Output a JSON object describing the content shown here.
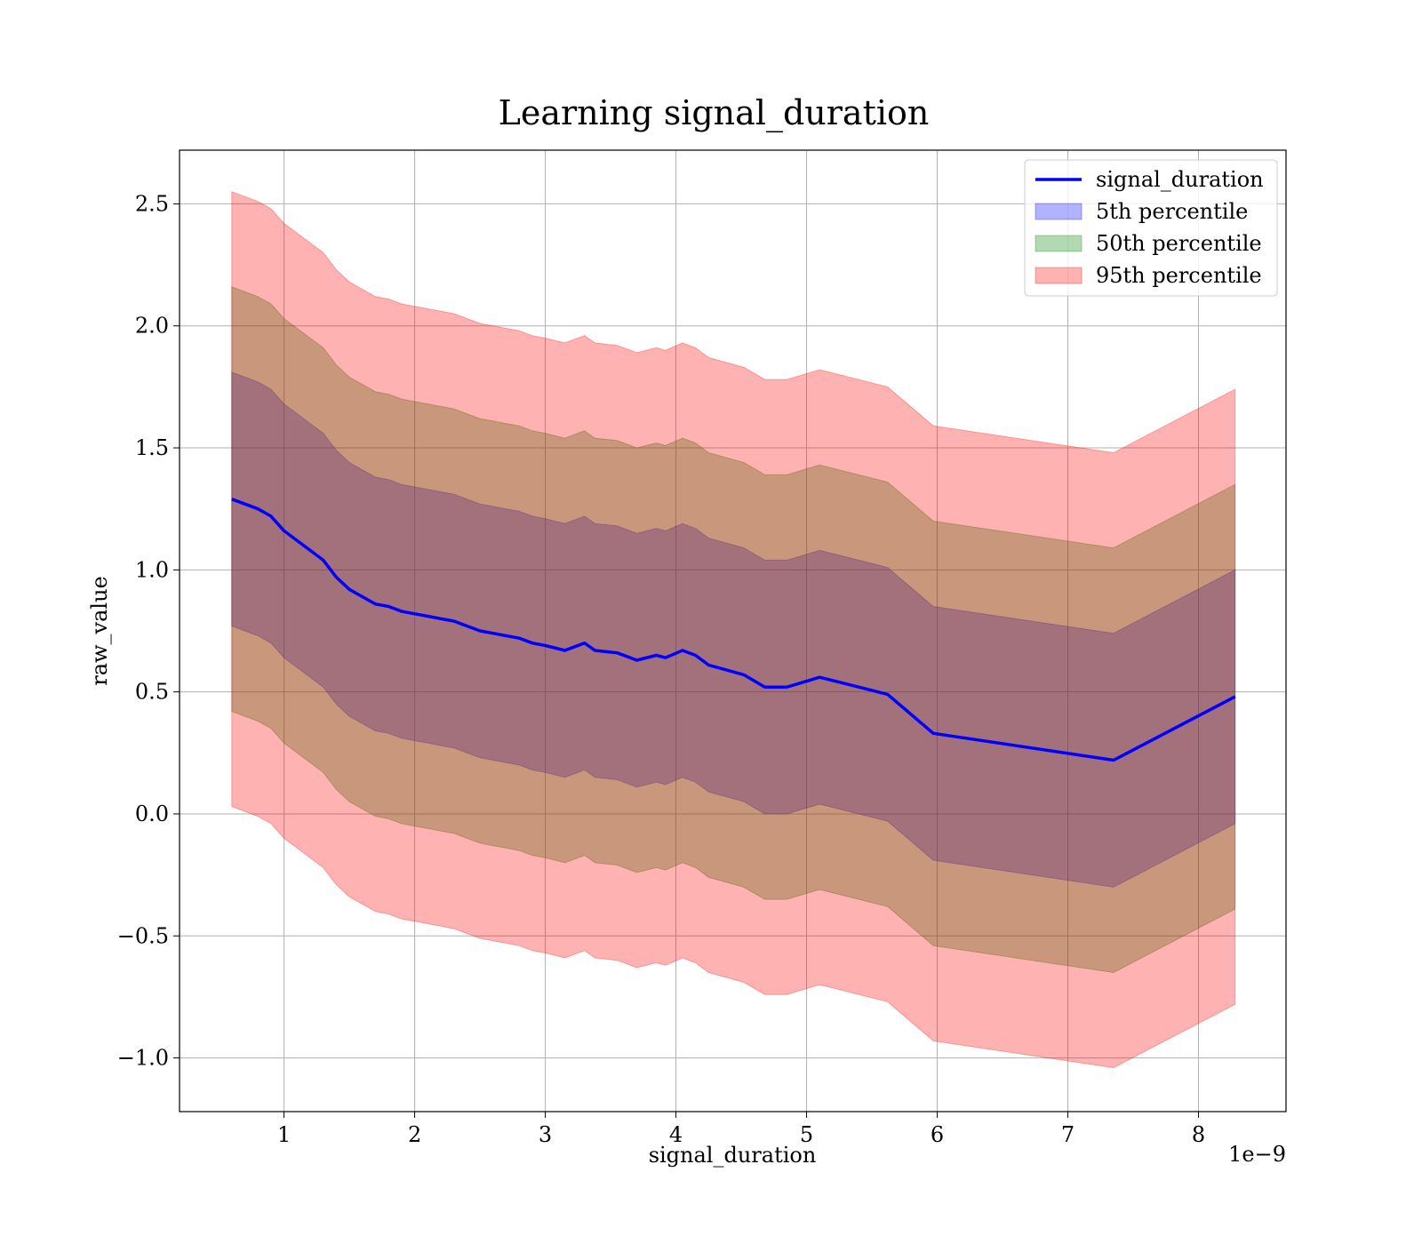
{
  "chart_data": {
    "type": "area",
    "title": "Learning signal_duration",
    "xlabel": "signal_duration",
    "ylabel": "raw_value",
    "x_offset_label": "1e−9",
    "xlim": [
      0.2,
      8.67
    ],
    "ylim": [
      -1.22,
      2.72
    ],
    "grid": true,
    "legend_position": "upper right",
    "x_ticks": [
      {
        "value": 1,
        "label": "1"
      },
      {
        "value": 2,
        "label": "2"
      },
      {
        "value": 3,
        "label": "3"
      },
      {
        "value": 4,
        "label": "4"
      },
      {
        "value": 5,
        "label": "5"
      },
      {
        "value": 6,
        "label": "6"
      },
      {
        "value": 7,
        "label": "7"
      },
      {
        "value": 8,
        "label": "8"
      }
    ],
    "y_ticks": [
      {
        "value": -1.0,
        "label": "−1.0"
      },
      {
        "value": -0.5,
        "label": "−0.5"
      },
      {
        "value": 0.0,
        "label": "0.0"
      },
      {
        "value": 0.5,
        "label": "0.5"
      },
      {
        "value": 1.0,
        "label": "1.0"
      },
      {
        "value": 1.5,
        "label": "1.5"
      },
      {
        "value": 2.0,
        "label": "2.0"
      },
      {
        "value": 2.5,
        "label": "2.5"
      }
    ],
    "x": [
      0.6,
      0.7,
      0.8,
      0.9,
      1.0,
      1.1,
      1.2,
      1.3,
      1.4,
      1.5,
      1.6,
      1.7,
      1.8,
      1.9,
      2.0,
      2.1,
      2.2,
      2.3,
      2.4,
      2.5,
      2.6,
      2.7,
      2.8,
      2.9,
      3.0,
      3.15,
      3.3,
      3.38,
      3.55,
      3.7,
      3.85,
      3.92,
      4.05,
      4.15,
      4.25,
      4.52,
      4.68,
      4.85,
      5.1,
      5.25,
      5.62,
      5.97,
      7.35,
      8.28
    ],
    "series": [
      {
        "name": "signal_duration",
        "role": "line",
        "color": "#0000ff",
        "values": [
          1.29,
          1.27,
          1.25,
          1.22,
          1.16,
          1.12,
          1.08,
          1.04,
          0.97,
          0.92,
          0.89,
          0.86,
          0.85,
          0.83,
          0.82,
          0.81,
          0.8,
          0.79,
          0.77,
          0.75,
          0.74,
          0.73,
          0.72,
          0.7,
          0.69,
          0.67,
          0.7,
          0.67,
          0.66,
          0.63,
          0.65,
          0.64,
          0.67,
          0.65,
          0.61,
          0.57,
          0.52,
          0.52,
          0.56,
          0.54,
          0.49,
          0.33,
          0.22,
          0.48
        ]
      },
      {
        "name": "5th percentile",
        "role": "band",
        "color": "#0000ff",
        "opacity": 0.3,
        "lower": [
          0.77,
          0.75,
          0.73,
          0.7,
          0.64,
          0.6,
          0.56,
          0.52,
          0.45,
          0.4,
          0.37,
          0.34,
          0.33,
          0.31,
          0.3,
          0.29,
          0.28,
          0.27,
          0.25,
          0.23,
          0.22,
          0.21,
          0.2,
          0.18,
          0.17,
          0.15,
          0.18,
          0.15,
          0.14,
          0.11,
          0.13,
          0.12,
          0.15,
          0.13,
          0.09,
          0.05,
          0.0,
          0.0,
          0.04,
          0.02,
          -0.03,
          -0.19,
          -0.3,
          -0.04
        ],
        "upper": [
          1.81,
          1.79,
          1.77,
          1.74,
          1.68,
          1.64,
          1.6,
          1.56,
          1.49,
          1.44,
          1.41,
          1.38,
          1.37,
          1.35,
          1.34,
          1.33,
          1.32,
          1.31,
          1.29,
          1.27,
          1.26,
          1.25,
          1.24,
          1.22,
          1.21,
          1.19,
          1.22,
          1.19,
          1.18,
          1.15,
          1.17,
          1.16,
          1.19,
          1.17,
          1.13,
          1.09,
          1.04,
          1.04,
          1.08,
          1.06,
          1.01,
          0.85,
          0.74,
          1.0
        ]
      },
      {
        "name": "50th percentile",
        "role": "band",
        "color": "#008000",
        "opacity": 0.3,
        "lower": [
          0.42,
          0.4,
          0.38,
          0.35,
          0.29,
          0.25,
          0.21,
          0.17,
          0.1,
          0.05,
          0.02,
          -0.01,
          -0.02,
          -0.04,
          -0.05,
          -0.06,
          -0.07,
          -0.08,
          -0.1,
          -0.12,
          -0.13,
          -0.14,
          -0.15,
          -0.17,
          -0.18,
          -0.2,
          -0.17,
          -0.2,
          -0.21,
          -0.24,
          -0.22,
          -0.23,
          -0.2,
          -0.22,
          -0.26,
          -0.3,
          -0.35,
          -0.35,
          -0.31,
          -0.33,
          -0.38,
          -0.54,
          -0.65,
          -0.39
        ],
        "upper": [
          2.16,
          2.14,
          2.12,
          2.09,
          2.03,
          1.99,
          1.95,
          1.91,
          1.84,
          1.79,
          1.76,
          1.73,
          1.72,
          1.7,
          1.69,
          1.68,
          1.67,
          1.66,
          1.64,
          1.62,
          1.61,
          1.6,
          1.59,
          1.57,
          1.56,
          1.54,
          1.57,
          1.54,
          1.53,
          1.5,
          1.52,
          1.51,
          1.54,
          1.52,
          1.48,
          1.44,
          1.39,
          1.39,
          1.43,
          1.41,
          1.36,
          1.2,
          1.09,
          1.35
        ]
      },
      {
        "name": "95th percentile",
        "role": "band",
        "color": "#ff0000",
        "opacity": 0.3,
        "lower": [
          0.03,
          0.01,
          -0.01,
          -0.04,
          -0.1,
          -0.14,
          -0.18,
          -0.22,
          -0.29,
          -0.34,
          -0.37,
          -0.4,
          -0.41,
          -0.43,
          -0.44,
          -0.45,
          -0.46,
          -0.47,
          -0.49,
          -0.51,
          -0.52,
          -0.53,
          -0.54,
          -0.56,
          -0.57,
          -0.59,
          -0.56,
          -0.59,
          -0.6,
          -0.63,
          -0.61,
          -0.62,
          -0.59,
          -0.61,
          -0.65,
          -0.69,
          -0.74,
          -0.74,
          -0.7,
          -0.72,
          -0.77,
          -0.93,
          -1.04,
          -0.78
        ],
        "upper": [
          2.55,
          2.53,
          2.51,
          2.48,
          2.42,
          2.38,
          2.34,
          2.3,
          2.23,
          2.18,
          2.15,
          2.12,
          2.11,
          2.09,
          2.08,
          2.07,
          2.06,
          2.05,
          2.03,
          2.01,
          2.0,
          1.99,
          1.98,
          1.96,
          1.95,
          1.93,
          1.96,
          1.93,
          1.92,
          1.89,
          1.91,
          1.9,
          1.93,
          1.91,
          1.87,
          1.83,
          1.78,
          1.78,
          1.82,
          1.8,
          1.75,
          1.59,
          1.48,
          1.74
        ]
      }
    ]
  }
}
